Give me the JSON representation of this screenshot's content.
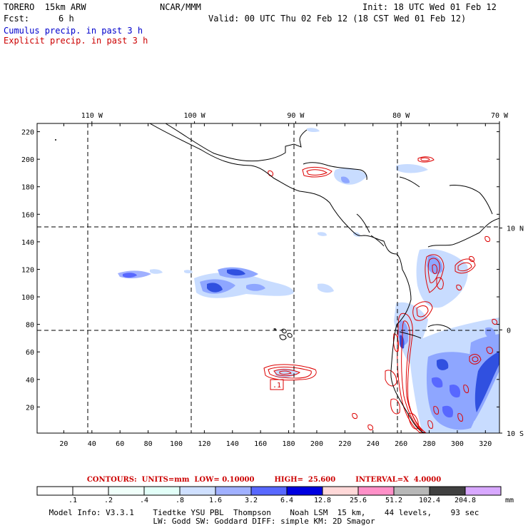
{
  "header": {
    "model": "TORERO  15km ARW",
    "org": "NCAR/MMM",
    "init": "Init: 18 UTC Wed 01 Feb 12",
    "fcst_label": "Fcst:",
    "fcst_value": "6 h",
    "valid": "Valid: 00 UTC Thu 02 Feb 12 (18 CST Wed 01 Feb 12)",
    "line_cumulus": "Cumulus precip. in past 3 h",
    "line_explicit": "Explicit precip. in past 3 h"
  },
  "colors": {
    "cumulus_text": "#0000cc",
    "explicit_text": "#cc0000",
    "contour": "#dd0000",
    "coast": "#000000",
    "precip_light": "#c8dcff",
    "precip_mid": "#8ea6ff",
    "precip_dark": "#3050e0"
  },
  "map": {
    "top_labels": [
      "110 W",
      "100 W",
      "90 W",
      "80 W",
      "70 W"
    ],
    "right_labels": [
      "10 N",
      "0",
      "10 S"
    ],
    "y_ticks": [
      "220",
      "200",
      "180",
      "160",
      "140",
      "120",
      "100",
      "80",
      "60",
      "40",
      "20"
    ],
    "x_ticks": [
      "20",
      "40",
      "60",
      "80",
      "100",
      "120",
      "140",
      "160",
      "180",
      "200",
      "220",
      "240",
      "260",
      "280",
      "300",
      "320"
    ],
    "x_range": [
      1,
      330
    ],
    "y_range": [
      1,
      226
    ],
    "meridians_x": [
      40,
      113,
      185,
      260
    ],
    "parallels_y": [
      150,
      76
    ],
    "annotation_label": ".1"
  },
  "contours_info": {
    "units": "CONTOURS:  UNITS=mm  LOW= 0.10000",
    "high": "HIGH=  25.600",
    "interval": "INTERVAL=X  4.0000"
  },
  "colorbar": {
    "labels": [
      ".1",
      ".2",
      ".4",
      ".8",
      "1.6",
      "3.2",
      "6.4",
      "12.8",
      "25.6",
      "51.2",
      "102.4",
      "204.8"
    ],
    "unit": "mm",
    "colors": [
      "#ffffff",
      "#ffffff",
      "#f0fffa",
      "#e2fff8",
      "#cfe0ff",
      "#a0b0ff",
      "#5868ff",
      "#0000e0",
      "#ffd8d8",
      "#ff90c8",
      "#b8b8b8",
      "#404040",
      "#d8a8ff"
    ]
  },
  "footer": {
    "line1": "Model Info: V3.3.1    Tiedtke YSU PBL  Thompson    Noah LSM  15 km,    44 levels,    93 sec",
    "line2": "LW: Godd SW: Goddard DIFF: simple KM: 2D Smagor"
  }
}
